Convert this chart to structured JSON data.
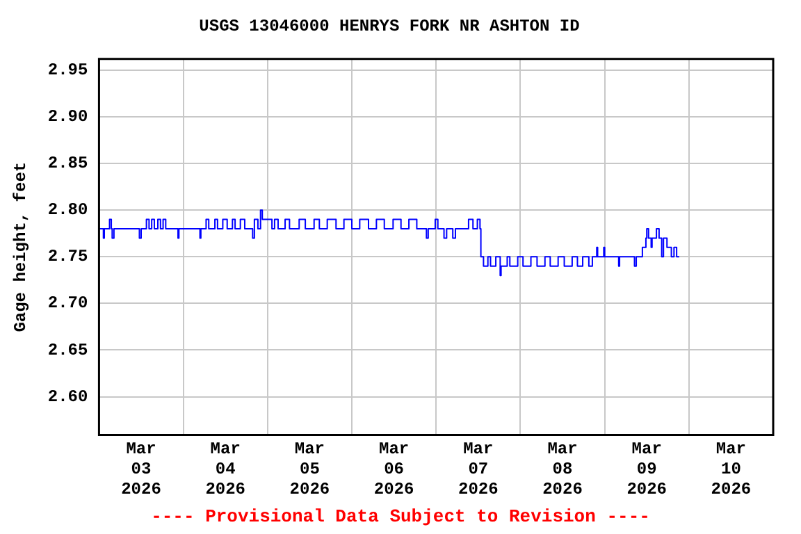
{
  "chart_data": {
    "type": "step",
    "title": "USGS 13046000 HENRYS FORK NR ASHTON ID",
    "ylabel": "Gage height, feet",
    "annotations": [
      "---- Provisional Data Subject to Revision ----"
    ],
    "xlim": [
      "2026-03-03T00:00",
      "2026-03-11T00:00"
    ],
    "xticks": [
      {
        "value": "2026-03-03T12:00",
        "label": "Mar 03 2026"
      },
      {
        "value": "2026-03-04T00:00",
        "label": null
      },
      {
        "value": "2026-03-04T12:00",
        "label": "Mar 04 2026"
      },
      {
        "value": "2026-03-05T00:00",
        "label": null
      },
      {
        "value": "2026-03-05T12:00",
        "label": "Mar 05 2026"
      },
      {
        "value": "2026-03-06T00:00",
        "label": null
      },
      {
        "value": "2026-03-06T12:00",
        "label": "Mar 06 2026"
      },
      {
        "value": "2026-03-07T00:00",
        "label": null
      },
      {
        "value": "2026-03-07T12:00",
        "label": "Mar 07 2026"
      },
      {
        "value": "2026-03-08T00:00",
        "label": null
      },
      {
        "value": "2026-03-08T12:00",
        "label": "Mar 08 2026"
      },
      {
        "value": "2026-03-09T00:00",
        "label": null
      },
      {
        "value": "2026-03-09T12:00",
        "label": "Mar 09 2026"
      },
      {
        "value": "2026-03-10T00:00",
        "label": null
      },
      {
        "value": "2026-03-10T12:00",
        "label": "Mar 10 2026"
      }
    ],
    "ylim": [
      2.559,
      2.962
    ],
    "yticks": [
      {
        "value": 2.6,
        "label": "2.60"
      },
      2.65,
      {
        "value": 2.7,
        "label": "2.70"
      },
      2.75,
      {
        "value": 2.8,
        "label": "2.80"
      },
      2.85,
      {
        "value": 2.9,
        "label": "2.90"
      },
      2.95
    ],
    "grid": true,
    "legend": false,
    "series": [
      {
        "color": "#0000ff",
        "x": [
          "2026-03-03T00:00",
          "2026-03-03T01:15",
          "2026-03-03T01:30",
          "2026-03-03T03:00",
          "2026-03-03T03:30",
          "2026-03-03T03:45",
          "2026-03-03T04:15",
          "2026-03-03T11:30",
          "2026-03-03T12:00",
          "2026-03-03T13:30",
          "2026-03-03T14:15",
          "2026-03-03T15:00",
          "2026-03-03T15:45",
          "2026-03-03T16:45",
          "2026-03-03T17:30",
          "2026-03-03T18:15",
          "2026-03-03T19:00",
          "2026-03-03T22:30",
          "2026-03-03T22:45",
          "2026-03-04T04:45",
          "2026-03-04T05:00",
          "2026-03-04T06:30",
          "2026-03-04T07:15",
          "2026-03-04T09:00",
          "2026-03-04T09:45",
          "2026-03-04T11:15",
          "2026-03-04T12:30",
          "2026-03-04T14:00",
          "2026-03-04T14:45",
          "2026-03-04T16:15",
          "2026-03-04T17:30",
          "2026-03-04T19:45",
          "2026-03-04T20:15",
          "2026-03-04T21:15",
          "2026-03-04T22:00",
          "2026-03-04T22:30",
          "2026-03-05T01:15",
          "2026-03-05T02:00",
          "2026-03-05T03:00",
          "2026-03-05T05:00",
          "2026-03-05T06:15",
          "2026-03-05T09:00",
          "2026-03-05T10:45",
          "2026-03-05T13:15",
          "2026-03-05T14:45",
          "2026-03-05T17:00",
          "2026-03-05T19:30",
          "2026-03-05T21:45",
          "2026-03-06T00:00",
          "2026-03-06T02:15",
          "2026-03-06T04:45",
          "2026-03-06T07:00",
          "2026-03-06T09:15",
          "2026-03-06T11:45",
          "2026-03-06T14:00",
          "2026-03-06T16:15",
          "2026-03-06T18:30",
          "2026-03-06T21:15",
          "2026-03-06T21:45",
          "2026-03-06T23:45",
          "2026-03-07T00:30",
          "2026-03-07T02:15",
          "2026-03-07T03:00",
          "2026-03-07T04:45",
          "2026-03-07T05:30",
          "2026-03-07T09:15",
          "2026-03-07T10:30",
          "2026-03-07T11:45",
          "2026-03-07T12:30",
          "2026-03-07T12:45",
          "2026-03-07T13:30",
          "2026-03-07T14:45",
          "2026-03-07T15:30",
          "2026-03-07T17:00",
          "2026-03-07T18:15",
          "2026-03-07T18:30",
          "2026-03-07T20:15",
          "2026-03-07T21:00",
          "2026-03-07T23:15",
          "2026-03-08T00:45",
          "2026-03-08T03:00",
          "2026-03-08T04:45",
          "2026-03-08T07:00",
          "2026-03-08T08:30",
          "2026-03-08T10:45",
          "2026-03-08T12:30",
          "2026-03-08T14:45",
          "2026-03-08T16:15",
          "2026-03-08T17:45",
          "2026-03-08T19:30",
          "2026-03-08T20:30",
          "2026-03-08T21:45",
          "2026-03-08T22:00",
          "2026-03-08T23:45",
          "2026-03-09T00:00",
          "2026-03-09T04:00",
          "2026-03-09T04:15",
          "2026-03-09T08:30",
          "2026-03-09T09:00",
          "2026-03-09T10:45",
          "2026-03-09T11:45",
          "2026-03-09T12:00",
          "2026-03-09T12:30",
          "2026-03-09T13:15",
          "2026-03-09T13:30",
          "2026-03-09T14:45",
          "2026-03-09T15:30",
          "2026-03-09T16:15",
          "2026-03-09T16:45",
          "2026-03-09T17:45",
          "2026-03-09T19:00",
          "2026-03-09T19:45",
          "2026-03-09T20:30",
          "2026-03-09T21:15"
        ],
        "values": [
          2.78,
          2.77,
          2.78,
          2.79,
          2.78,
          2.77,
          2.78,
          2.77,
          2.78,
          2.79,
          2.78,
          2.79,
          2.78,
          2.79,
          2.78,
          2.79,
          2.78,
          2.77,
          2.78,
          2.77,
          2.78,
          2.79,
          2.78,
          2.79,
          2.78,
          2.79,
          2.78,
          2.79,
          2.78,
          2.79,
          2.78,
          2.77,
          2.79,
          2.78,
          2.8,
          2.79,
          2.78,
          2.79,
          2.78,
          2.79,
          2.78,
          2.79,
          2.78,
          2.79,
          2.78,
          2.79,
          2.78,
          2.79,
          2.78,
          2.79,
          2.78,
          2.79,
          2.78,
          2.79,
          2.78,
          2.79,
          2.78,
          2.77,
          2.78,
          2.79,
          2.78,
          2.77,
          2.78,
          2.77,
          2.78,
          2.79,
          2.78,
          2.79,
          2.78,
          2.75,
          2.74,
          2.75,
          2.74,
          2.75,
          2.73,
          2.74,
          2.75,
          2.74,
          2.75,
          2.74,
          2.75,
          2.74,
          2.75,
          2.74,
          2.75,
          2.74,
          2.75,
          2.74,
          2.75,
          2.74,
          2.75,
          2.76,
          2.75,
          2.76,
          2.75,
          2.74,
          2.75,
          2.74,
          2.75,
          2.76,
          2.77,
          2.78,
          2.77,
          2.76,
          2.77,
          2.78,
          2.77,
          2.75,
          2.77,
          2.76,
          2.75,
          2.76,
          2.75,
          2.75
        ]
      }
    ]
  }
}
